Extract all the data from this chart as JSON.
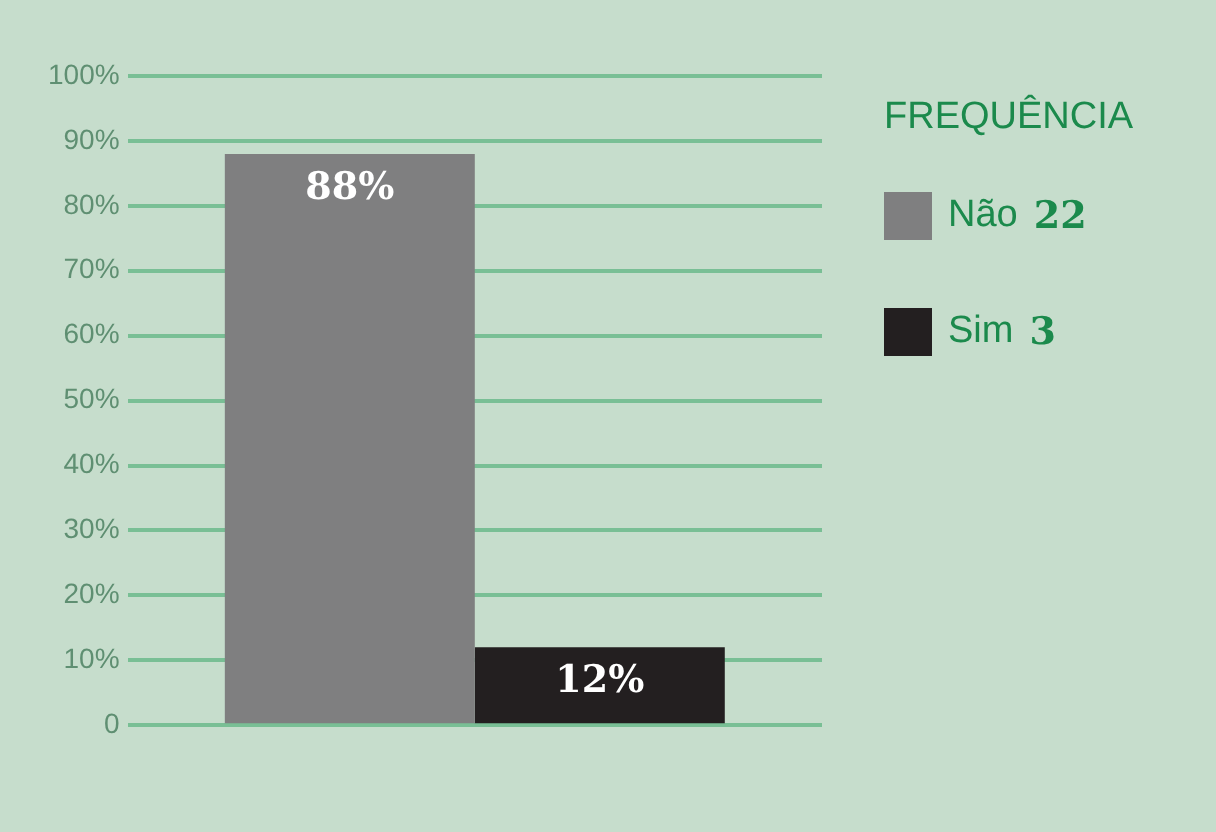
{
  "chart_data": {
    "type": "bar",
    "legend_title": "FREQUÊNCIA",
    "categories": [
      null
    ],
    "series": [
      {
        "name": "Não",
        "color": "#7f7f80",
        "values": [
          88
        ],
        "value_labels": [
          "88%"
        ]
      },
      {
        "name": "Sim",
        "color": "#231f20",
        "values": [
          12
        ],
        "value_labels": [
          "12%"
        ]
      }
    ],
    "annotations": [
      "22",
      "3"
    ],
    "ylim": [
      0,
      100
    ],
    "yticks": [
      {
        "value": 0,
        "label": "0"
      },
      {
        "value": 10,
        "label": "10%"
      },
      {
        "value": 20,
        "label": "20%"
      },
      {
        "value": 30,
        "label": "30%"
      },
      {
        "value": 40,
        "label": "40%"
      },
      {
        "value": 50,
        "label": "50%"
      },
      {
        "value": 60,
        "label": "60%"
      },
      {
        "value": 70,
        "label": "70%"
      },
      {
        "value": 80,
        "label": "80%"
      },
      {
        "value": 90,
        "label": "90%"
      },
      {
        "value": 100,
        "label": "100%"
      }
    ],
    "grid": "y",
    "legend": "right"
  }
}
